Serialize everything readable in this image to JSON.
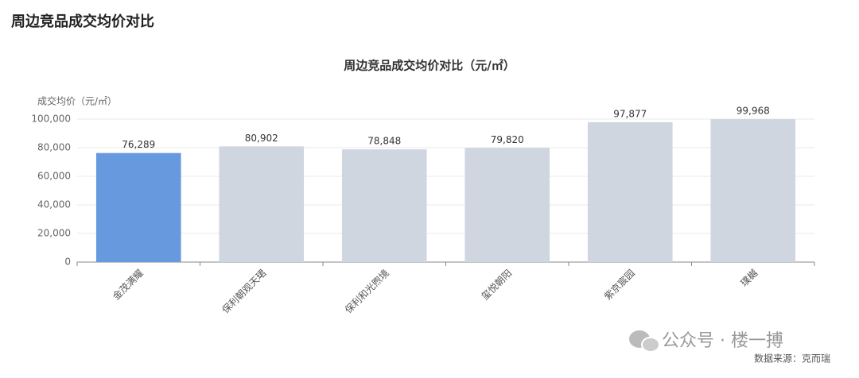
{
  "header": {
    "title": "周边竞品成交均价对比"
  },
  "chart_data": {
    "type": "bar",
    "title": "周边竞品成交均价对比（元/㎡）",
    "y_label": "成交均价（元/㎡）",
    "categories": [
      "金茂满耀",
      "保利朝观天珺",
      "保利和光煦境",
      "玺悦朝阳",
      "紫京宸园",
      "璞樾"
    ],
    "values": [
      76289,
      80902,
      78848,
      79820,
      97877,
      99968
    ],
    "value_labels": [
      "76,289",
      "80,902",
      "78,848",
      "79,820",
      "97,877",
      "99,968"
    ],
    "colors": [
      "#6699dd",
      "#cfd6e0",
      "#cfd6e0",
      "#cfd6e0",
      "#cfd6e0",
      "#cfd6e0"
    ],
    "ylim": [
      0,
      100000
    ],
    "yticks": [
      0,
      {
        "value": 20000,
        "label": "20,000"
      },
      {
        "value": 40000,
        "label": "40,000"
      },
      {
        "value": 60000,
        "label": "60,000"
      },
      {
        "value": 80000,
        "label": "80,000"
      },
      {
        "value": 100000,
        "label": "100,000"
      }
    ],
    "grid": true
  },
  "footer": {
    "watermark": "公众号 · 楼一搏",
    "source": "数据来源：克而瑞"
  }
}
